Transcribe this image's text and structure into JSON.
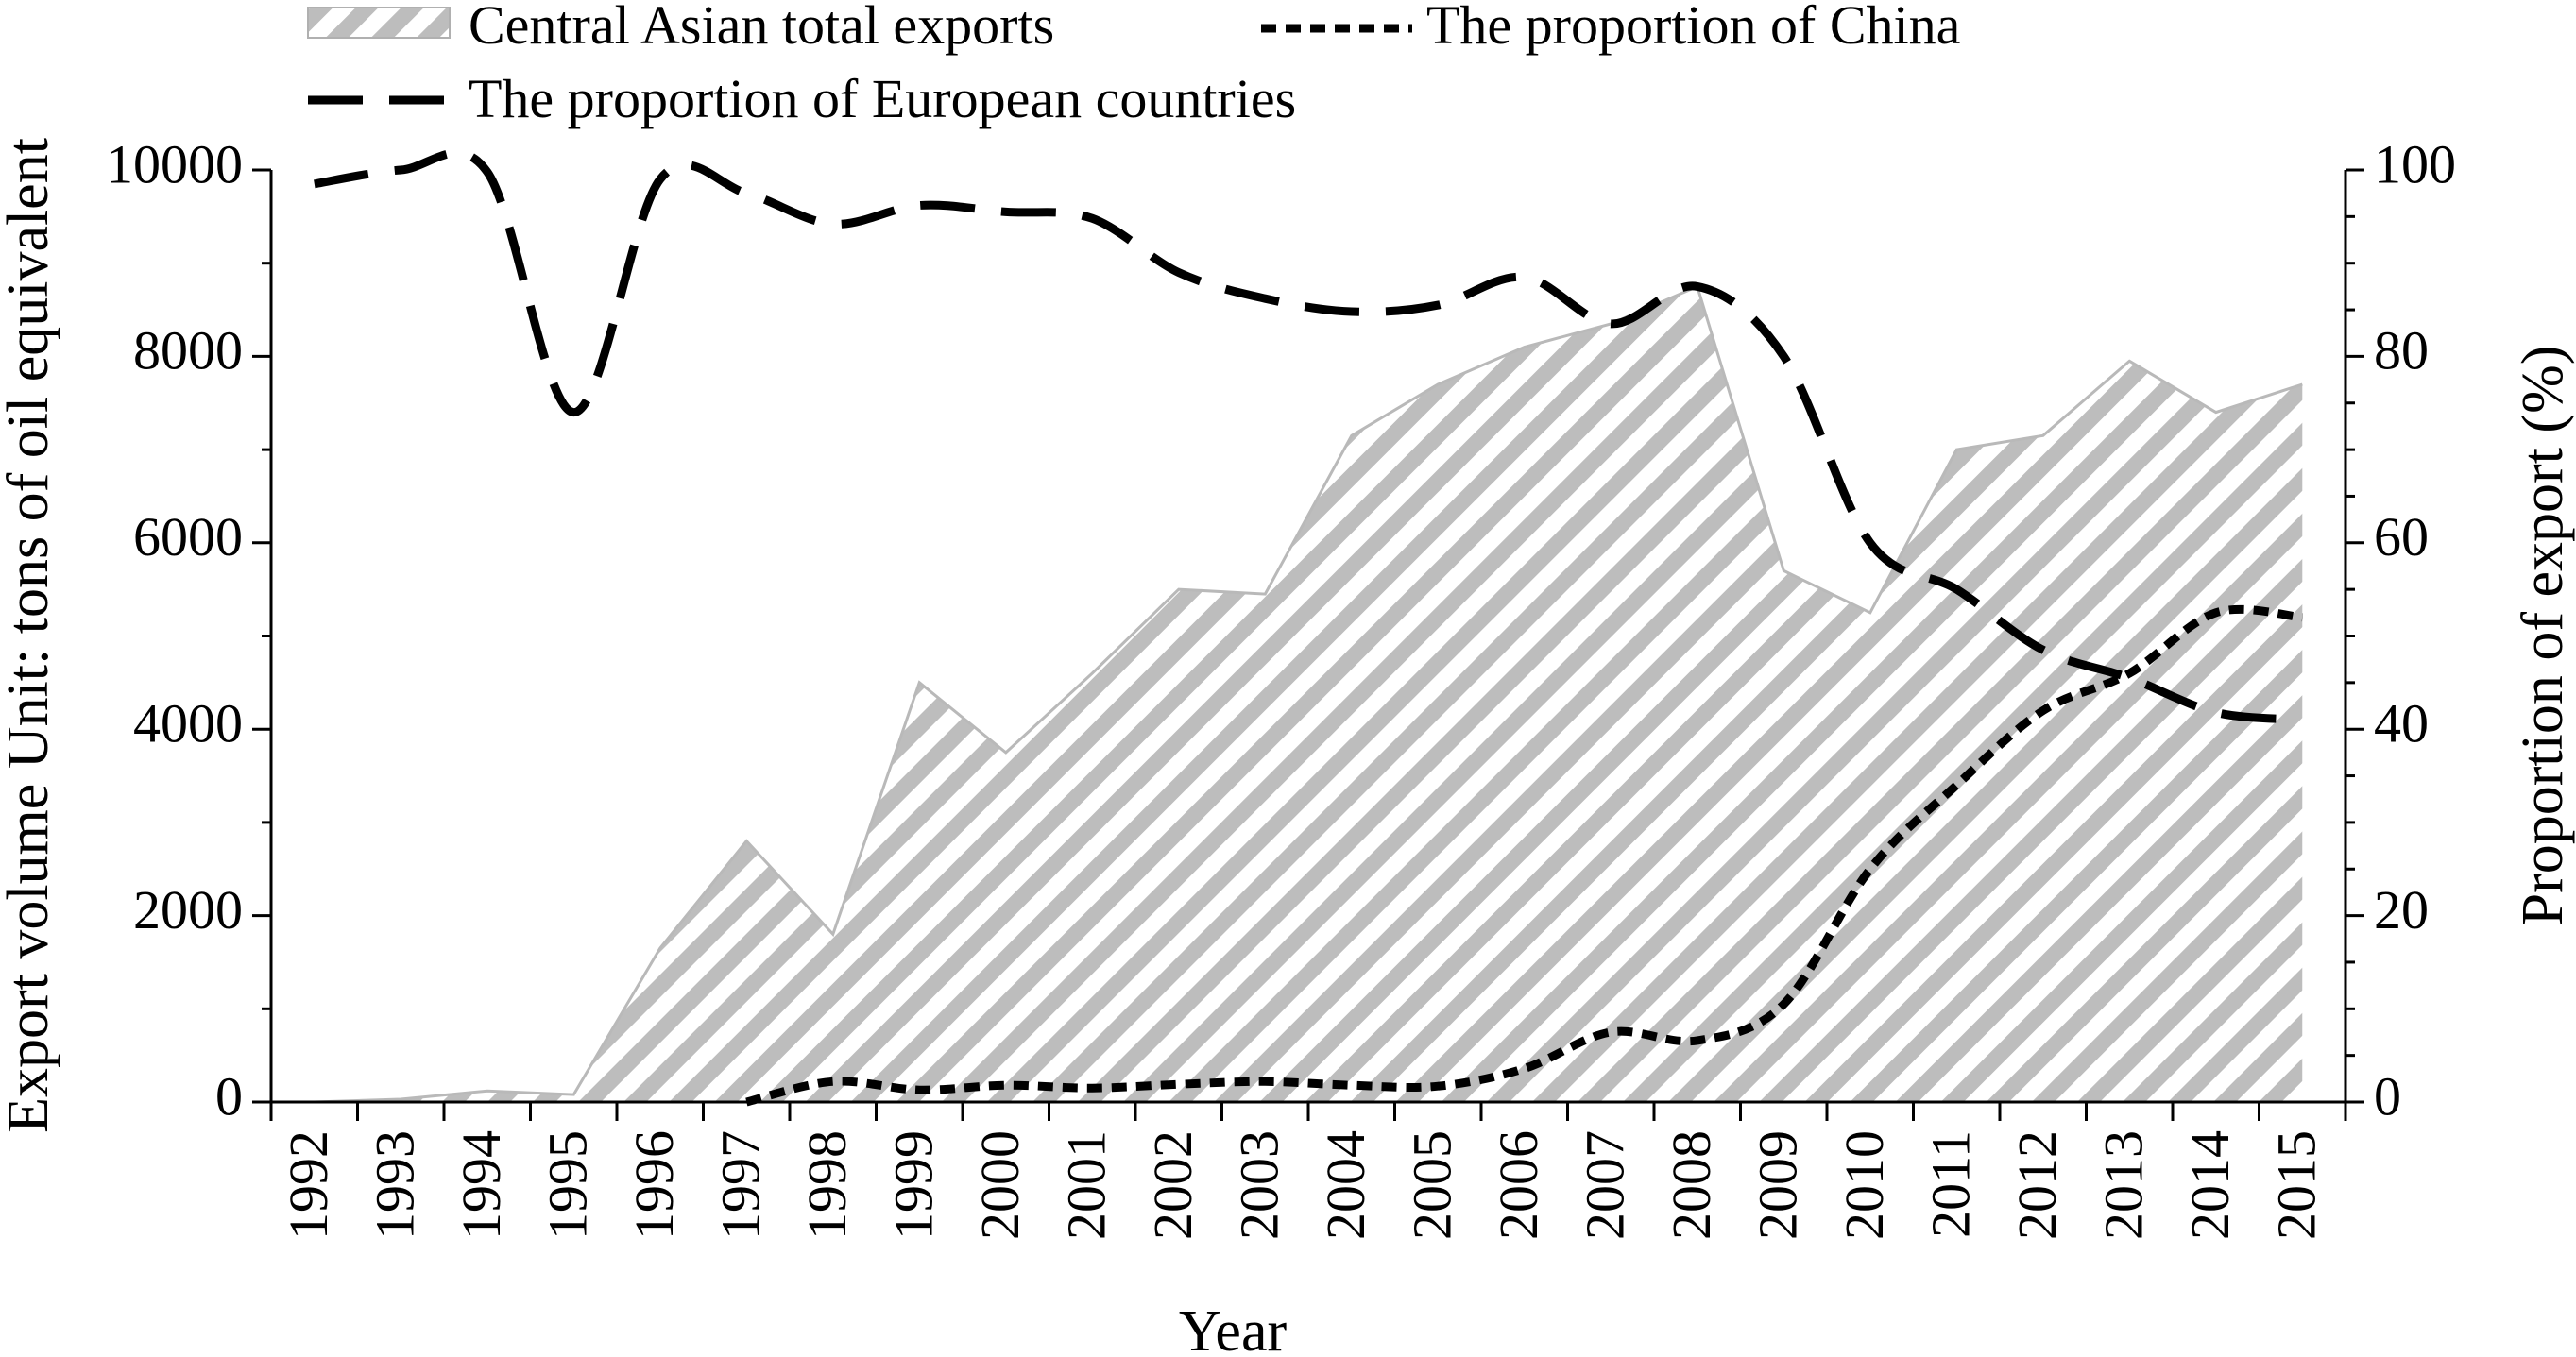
{
  "chart_data": {
    "type": "area",
    "xlabel": "Year",
    "ylabel_left": "Export volume Unit: tons of oil equivalent",
    "ylabel_right": "Proportion of export (%)",
    "ylim_left": [
      0,
      10000
    ],
    "ylim_right": [
      0,
      100
    ],
    "yticks_left": [
      "0",
      "2000",
      "4000",
      "6000",
      "8000",
      "10000"
    ],
    "yticks_right": [
      "0",
      "20",
      "40",
      "60",
      "80",
      "100"
    ],
    "categories": [
      "1992",
      "1993",
      "1994",
      "1995",
      "1996",
      "1997",
      "1998",
      "1999",
      "2000",
      "2001",
      "2002",
      "2003",
      "2004",
      "2005",
      "2006",
      "2007",
      "2008",
      "2009",
      "2010",
      "2011",
      "2012",
      "2013",
      "2014",
      "2015"
    ],
    "legend_position": "top",
    "grid": false,
    "series": [
      {
        "name": "Central Asian total exports",
        "kind": "area",
        "axis": "left",
        "color": "#b9b9b9",
        "values": [
          0,
          30,
          120,
          80,
          1650,
          2800,
          1800,
          4500,
          3750,
          4600,
          5500,
          5450,
          7150,
          7700,
          8100,
          8350,
          8750,
          5700,
          5250,
          7000,
          7150,
          7950,
          7400,
          7700
        ]
      },
      {
        "name": "The proportion of China",
        "kind": "line",
        "axis": "right",
        "style": "short-dash",
        "color": "#000000",
        "values": [
          null,
          null,
          null,
          null,
          null,
          0,
          2.2,
          1.3,
          1.8,
          1.5,
          1.9,
          2.2,
          1.8,
          1.7,
          3.6,
          7.5,
          6.6,
          10.5,
          25,
          34,
          42,
          46,
          52.5,
          52
        ]
      },
      {
        "name": "The proportion of European countries",
        "kind": "line",
        "axis": "right",
        "style": "long-dash",
        "color": "#000000",
        "values": [
          98.5,
          100,
          99.8,
          74,
          99,
          97.5,
          94.2,
          96.2,
          95.5,
          94.8,
          89,
          86.2,
          84.8,
          85.5,
          88.5,
          83.5,
          87.5,
          80,
          60,
          55,
          48.5,
          45.5,
          41.8,
          41
        ]
      }
    ]
  }
}
